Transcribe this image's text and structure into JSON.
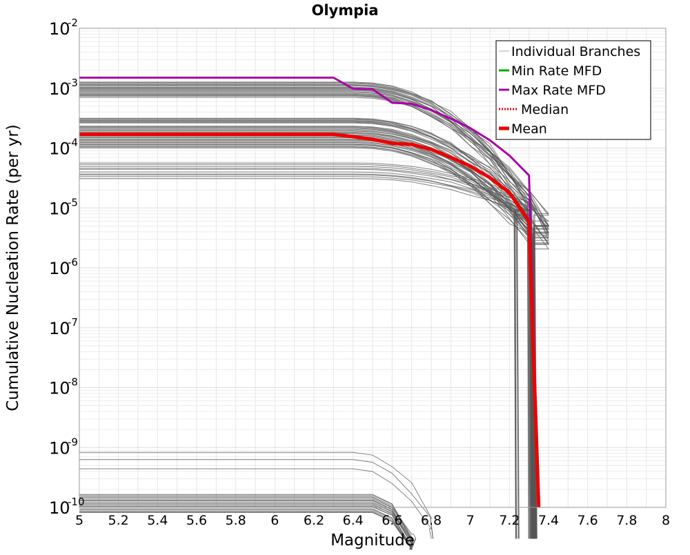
{
  "chart_data": {
    "type": "line",
    "title": "Olympia",
    "xlabel": "Magnitude",
    "ylabel": "Cumulative Nucleation Rate (per yr)",
    "xlim": [
      5,
      8
    ],
    "ylim": [
      1e-10,
      0.01
    ],
    "y_scale": "log",
    "grid": true,
    "legend_position": "top-right",
    "x_ticks": [
      "5",
      "5.2",
      "5.4",
      "5.6",
      "5.8",
      "6",
      "6.2",
      "6.4",
      "6.6",
      "6.8",
      "7",
      "7.2",
      "7.4",
      "7.6",
      "7.8",
      "8"
    ],
    "y_ticks": [
      {
        "base": "10",
        "exp": "-2",
        "value": 0.01
      },
      {
        "base": "10",
        "exp": "-3",
        "value": 0.001
      },
      {
        "base": "10",
        "exp": "-4",
        "value": 0.0001
      },
      {
        "base": "10",
        "exp": "-5",
        "value": 1e-05
      },
      {
        "base": "10",
        "exp": "-6",
        "value": 1e-06
      },
      {
        "base": "10",
        "exp": "-7",
        "value": 1e-07
      },
      {
        "base": "10",
        "exp": "-8",
        "value": 1e-08
      },
      {
        "base": "10",
        "exp": "-9",
        "value": 1e-09
      },
      {
        "base": "10",
        "exp": "-10",
        "value": 1e-10
      }
    ],
    "legend": [
      {
        "label": "Individual Branches",
        "color": "#aaaaaa",
        "style": "thin"
      },
      {
        "label": "Min Rate MFD",
        "color": "#00aa00",
        "style": "solid"
      },
      {
        "label": "Max Rate MFD",
        "color": "#aa00aa",
        "style": "solid"
      },
      {
        "label": "Median",
        "color": "#ee0000",
        "style": "dotted"
      },
      {
        "label": "Mean",
        "color": "#ee0000",
        "style": "thick"
      }
    ],
    "branch_groups": [
      {
        "count": 20,
        "rate_range": [
          0.0007,
          0.0013
        ],
        "knee": 6.3,
        "mmax": 7.32,
        "tail": 1.5
      },
      {
        "count": 26,
        "rate_range": [
          0.0001,
          0.00024
        ],
        "knee": 6.3,
        "mmax": 7.31,
        "tail": 1.2
      },
      {
        "count": 8,
        "rate_range": [
          0.00026,
          0.00032
        ],
        "knee": 6.3,
        "mmax": 7.23,
        "tail": 1.0
      },
      {
        "count": 10,
        "rate_range": [
          3e-05,
          6e-05
        ],
        "knee": 6.3,
        "mmax": 7.3,
        "tail": 0.5
      },
      {
        "count": 18,
        "rate_range": [
          8e-11,
          1.7e-10
        ],
        "knee": 6.4,
        "mmax": 6.7,
        "tail": 1.0
      },
      {
        "count": 3,
        "rate_range": [
          4e-10,
          1.1e-09
        ],
        "knee": 6.3,
        "mmax": 6.8,
        "tail": 1.0
      }
    ],
    "series": [
      {
        "name": "Max Rate MFD",
        "color": "#aa00aa",
        "x": [
          5.0,
          6.3,
          6.4,
          6.5,
          6.6,
          6.7,
          6.8,
          6.9,
          7.0,
          7.1,
          7.2,
          7.3,
          7.35
        ],
        "y": [
          0.0015,
          0.0015,
          0.00098,
          0.00096,
          0.00057,
          0.00055,
          0.00043,
          0.00031,
          0.000215,
          0.000135,
          7.5e-05,
          3.5e-05,
          1e-10
        ]
      },
      {
        "name": "Median",
        "color": "#ee0000",
        "x": [
          5.0,
          6.3,
          6.4,
          6.5,
          6.6,
          6.7,
          6.8,
          6.9,
          7.0,
          7.1,
          7.2,
          7.3,
          7.35
        ],
        "y": [
          0.00017,
          0.00017,
          0.000155,
          0.00014,
          0.00012,
          0.000115,
          9.5e-05,
          7e-05,
          5e-05,
          3.2e-05,
          1.8e-05,
          6e-06,
          1e-10
        ]
      },
      {
        "name": "Mean",
        "color": "#ee0000",
        "x": [
          5.0,
          6.3,
          6.4,
          6.5,
          6.6,
          6.7,
          6.8,
          6.9,
          7.0,
          7.1,
          7.2,
          7.3,
          7.35
        ],
        "y": [
          0.00017,
          0.00017,
          0.000155,
          0.00014,
          0.00012,
          0.000115,
          9.5e-05,
          7e-05,
          5e-05,
          3.2e-05,
          1.8e-05,
          6e-06,
          1e-10
        ]
      }
    ]
  }
}
